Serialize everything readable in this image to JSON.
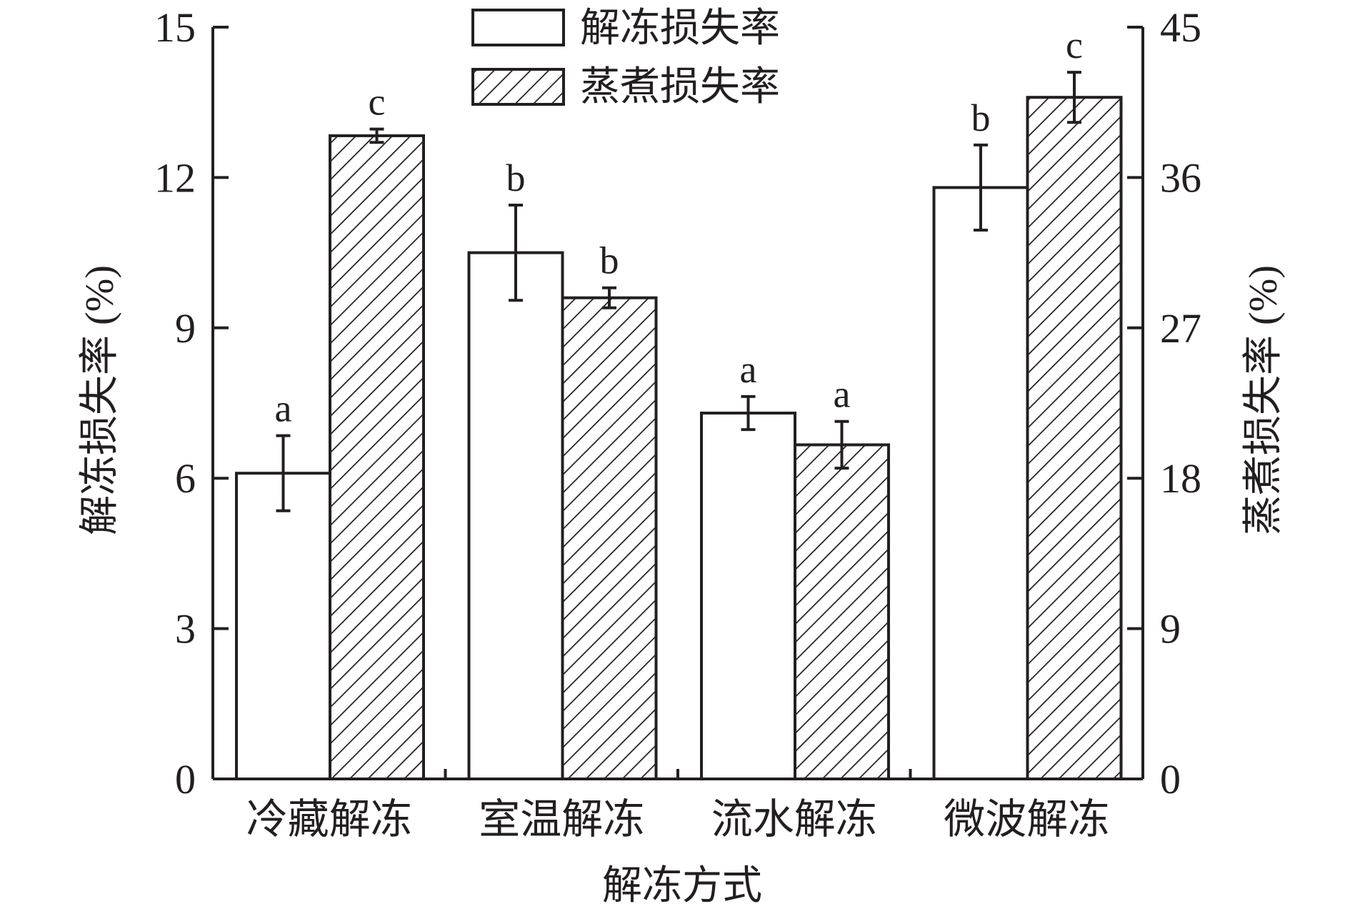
{
  "chart_data": {
    "type": "bar",
    "title": "",
    "xlabel": "解冻方式",
    "ylabel_left": "解冻损失率 (%)",
    "ylabel_right": "蒸煮损失率 (%)",
    "categories": [
      "冷藏解冻",
      "室温解冻",
      "流水解冻",
      "微波解冻"
    ],
    "ylim_left": [
      0,
      15
    ],
    "ylim_right": [
      0,
      45
    ],
    "yticks_left": [
      0,
      3,
      6,
      9,
      12,
      15
    ],
    "yticks_right": [
      0,
      9,
      18,
      27,
      36,
      45
    ],
    "grid": false,
    "legend_position": "top-center",
    "series": [
      {
        "name": "解冻损失率",
        "axis": "left",
        "fill": "solid",
        "values": [
          6.1,
          10.5,
          7.3,
          11.8
        ],
        "errors": [
          0.75,
          0.95,
          0.33,
          0.85
        ],
        "significance": [
          "a",
          "b",
          "a",
          "b"
        ]
      },
      {
        "name": "蒸煮损失率",
        "axis": "right",
        "fill": "hatched",
        "values": [
          38.5,
          28.8,
          20.0,
          40.8
        ],
        "errors": [
          0.4,
          0.6,
          1.4,
          1.5
        ],
        "significance": [
          "c",
          "b",
          "a",
          "c"
        ]
      }
    ],
    "colors": {
      "ink": "#231f20",
      "background": "#ffffff"
    }
  }
}
